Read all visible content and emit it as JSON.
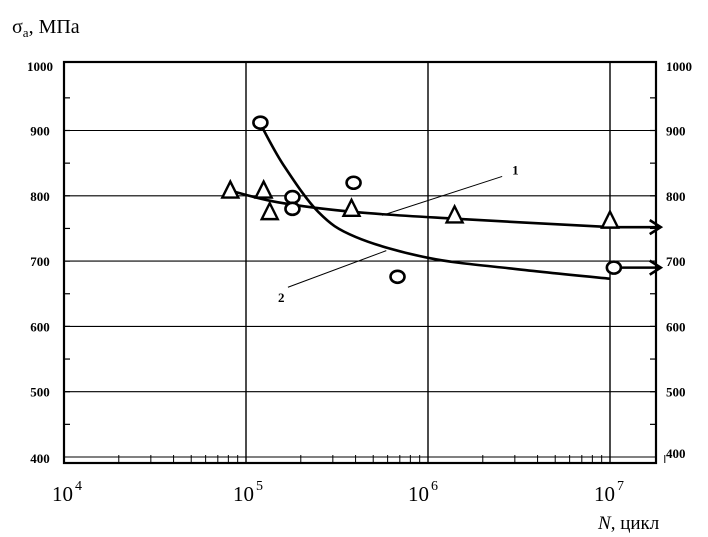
{
  "chart_data": {
    "type": "scatter",
    "xscale": "log",
    "xlim": [
      10000,
      20000000
    ],
    "ylim": [
      400,
      1000
    ],
    "ylim_right": [
      400,
      1000
    ],
    "grid": true,
    "y_ticks": [
      "1000",
      "900",
      "800",
      "700",
      "600",
      "500",
      "400"
    ],
    "y_tick_values": [
      1000,
      900,
      800,
      700,
      600,
      500,
      400
    ],
    "y_ticks_right": [
      "1000",
      "900",
      "800",
      "700",
      "600",
      "500",
      "400"
    ],
    "y_tick_values_right": [
      1000,
      900,
      800,
      700,
      600,
      500,
      400
    ],
    "x_ticks": [
      {
        "base": "10",
        "exp": "4",
        "value": 10000
      },
      {
        "base": "10",
        "exp": "5",
        "value": 100000
      },
      {
        "base": "10",
        "exp": "6",
        "value": 1000000
      },
      {
        "base": "10",
        "exp": "7",
        "value": 10000000
      }
    ],
    "ylabel": {
      "sym": "σ",
      "sub": "a",
      "rest": ", МПа"
    },
    "xlabel": {
      "sym": "N",
      "rest": ", цикл"
    },
    "series": [
      {
        "name": "1",
        "marker": "triangle",
        "points": [
          {
            "x": 82000,
            "y": 808
          },
          {
            "x": 125000,
            "y": 808
          },
          {
            "x": 135000,
            "y": 775
          },
          {
            "x": 380000,
            "y": 780
          },
          {
            "x": 1400000,
            "y": 770
          },
          {
            "x": 10000000,
            "y": 762
          }
        ],
        "curve": [
          {
            "x": 82000,
            "y": 808
          },
          {
            "x": 150000,
            "y": 790
          },
          {
            "x": 400000,
            "y": 775
          },
          {
            "x": 1400000,
            "y": 765
          },
          {
            "x": 10000000,
            "y": 752
          }
        ],
        "runout_arrow": {
          "x_from": 10000000,
          "x_to": 19000000,
          "y": 752
        }
      },
      {
        "name": "2",
        "marker": "circle",
        "points": [
          {
            "x": 120000,
            "y": 912
          },
          {
            "x": 180000,
            "y": 798
          },
          {
            "x": 180000,
            "y": 780
          },
          {
            "x": 390000,
            "y": 820
          },
          {
            "x": 680000,
            "y": 676
          },
          {
            "x": 10500000,
            "y": 690
          }
        ],
        "curve": [
          {
            "x": 120000,
            "y": 910
          },
          {
            "x": 160000,
            "y": 848
          },
          {
            "x": 250000,
            "y": 775
          },
          {
            "x": 400000,
            "y": 737
          },
          {
            "x": 1000000,
            "y": 705
          },
          {
            "x": 3000000,
            "y": 688
          },
          {
            "x": 10000000,
            "y": 673
          }
        ],
        "runout_arrow": {
          "x_from": 10500000,
          "x_to": 19000000,
          "y": 690
        }
      }
    ],
    "annotations": [
      {
        "text": "1",
        "x": 2900000,
        "y": 845,
        "leader_to": {
          "x": 560000,
          "y": 770
        }
      },
      {
        "text": "2",
        "x": 150000,
        "y": 650,
        "leader_from": {
          "x": 170000,
          "y": 660
        },
        "leader_to": {
          "x": 590000,
          "y": 716
        }
      }
    ]
  }
}
